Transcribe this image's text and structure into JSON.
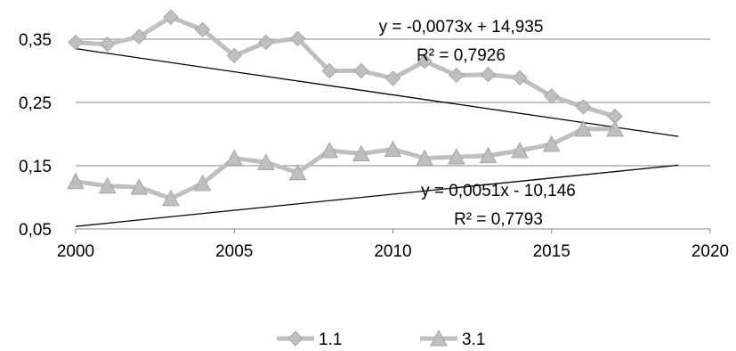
{
  "chart_data": {
    "type": "line",
    "title": "",
    "xlabel": "",
    "ylabel": "",
    "xlim": [
      2000,
      2020
    ],
    "ylim": [
      0.05,
      0.35
    ],
    "x_ticks": [
      2000,
      2005,
      2010,
      2015,
      2020
    ],
    "x_tick_labels": [
      "2000",
      "2005",
      "2010",
      "2015",
      "2020"
    ],
    "y_ticks": [
      0.05,
      0.15,
      0.25,
      0.35
    ],
    "y_tick_labels": [
      "0,05",
      "0,15",
      "0,25",
      "0,35"
    ],
    "grid": "horizontal",
    "legend_placement": "bottom",
    "series": [
      {
        "name": "1.1",
        "marker": "diamond",
        "color": "#bfbfbf",
        "x": [
          2000,
          2001,
          2002,
          2003,
          2004,
          2005,
          2006,
          2007,
          2008,
          2009,
          2010,
          2011,
          2012,
          2013,
          2014,
          2015,
          2016,
          2017
        ],
        "y": [
          0.345,
          0.342,
          0.354,
          0.385,
          0.365,
          0.324,
          0.345,
          0.351,
          0.3,
          0.3,
          0.288,
          0.315,
          0.293,
          0.294,
          0.289,
          0.26,
          0.243,
          0.228
        ]
      },
      {
        "name": "3.1",
        "marker": "triangle",
        "color": "#bfbfbf",
        "x": [
          2000,
          2001,
          2002,
          2003,
          2004,
          2005,
          2006,
          2007,
          2008,
          2009,
          2010,
          2011,
          2012,
          2013,
          2014,
          2015,
          2016,
          2017
        ],
        "y": [
          0.125,
          0.118,
          0.116,
          0.098,
          0.122,
          0.162,
          0.155,
          0.139,
          0.174,
          0.169,
          0.176,
          0.162,
          0.164,
          0.166,
          0.174,
          0.184,
          0.208,
          0.208
        ]
      }
    ],
    "trendlines": [
      {
        "series": "1.1",
        "slope": -0.0073,
        "intercept": 14.935,
        "x_range": [
          2000,
          2019
        ],
        "equation": "y = -0,0073x + 14,935",
        "r2": "R² = 0,7926"
      },
      {
        "series": "3.1",
        "slope": 0.0051,
        "intercept": -10.146,
        "x_range": [
          2000,
          2019
        ],
        "equation": "y = 0,0051x - 10,146",
        "r2": "R² = 0,7793"
      }
    ]
  }
}
